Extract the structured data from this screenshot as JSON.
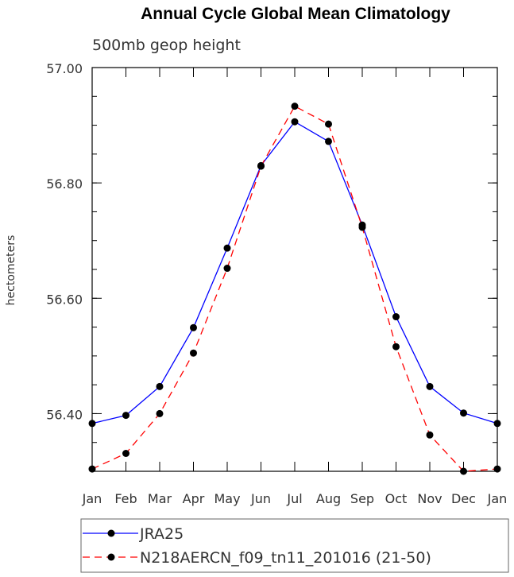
{
  "chart_data": {
    "type": "line",
    "title": "Annual Cycle Global Mean Climatology",
    "subtitle": "500mb geop height",
    "xlabel": "",
    "ylabel": "hectometers",
    "categories": [
      "Jan",
      "Feb",
      "Mar",
      "Apr",
      "May",
      "Jun",
      "Jul",
      "Aug",
      "Sep",
      "Oct",
      "Nov",
      "Dec",
      "Jan"
    ],
    "ylim": [
      56.3,
      57.0
    ],
    "yticks": [
      "56.40",
      "56.60",
      "56.80",
      "57.00"
    ],
    "ytick_values": [
      56.4,
      56.6,
      56.8,
      57.0
    ],
    "grid": false,
    "legend_position": "bottom",
    "series": [
      {
        "name": "JRA25",
        "color": "#0000ff",
        "dash": false,
        "values": [
          56.383,
          56.397,
          56.447,
          56.549,
          56.687,
          56.83,
          56.906,
          56.872,
          56.727,
          56.568,
          56.447,
          56.401,
          56.383
        ]
      },
      {
        "name": "N218AERCN_f09_tn11_201016 (21-50)",
        "color": "#ff0000",
        "dash": true,
        "values": [
          56.304,
          56.331,
          56.4,
          56.505,
          56.652,
          56.829,
          56.933,
          56.902,
          56.723,
          56.516,
          56.363,
          56.3,
          56.304
        ]
      }
    ]
  }
}
